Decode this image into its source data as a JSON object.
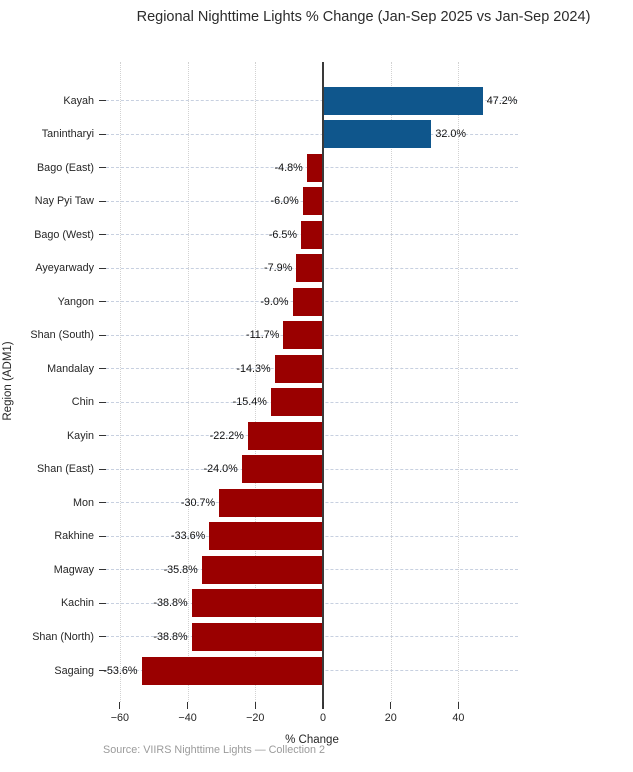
{
  "title": "Regional Nighttime Lights % Change (Jan-Sep 2025 vs Jan-Sep 2024)",
  "source_note": "Source: VIIRS Nighttime Lights — Collection 2",
  "chart_data": {
    "type": "bar",
    "orientation": "horizontal",
    "title": "Regional Nighttime Lights % Change (Jan-Sep 2025 vs Jan-Sep 2024)",
    "xlabel": "% Change",
    "ylabel": "Region (ADM1)",
    "categories": [
      "Kayah",
      "Tanintharyi",
      "Bago (East)",
      "Nay Pyi Taw",
      "Bago (West)",
      "Ayeyarwady",
      "Yangon",
      "Shan (South)",
      "Mandalay",
      "Chin",
      "Kayin",
      "Shan (East)",
      "Mon",
      "Rakhine",
      "Magway",
      "Kachin",
      "Shan (North)",
      "Sagaing"
    ],
    "values": [
      47.2,
      32.0,
      -4.8,
      -6.0,
      -6.5,
      -7.9,
      -9.0,
      -11.7,
      -14.3,
      -15.4,
      -22.2,
      -24.0,
      -30.7,
      -33.6,
      -35.8,
      -38.8,
      -38.8,
      -53.6
    ],
    "value_labels": [
      "47.2%",
      "32.0%",
      "-4.8%",
      "-6.0%",
      "-6.5%",
      "-7.9%",
      "-9.0%",
      "-11.7%",
      "-14.3%",
      "-15.4%",
      "-22.2%",
      "-24.0%",
      "-30.7%",
      "-33.6%",
      "-35.8%",
      "-38.8%",
      "-38.8%",
      "-53.6%"
    ],
    "xticks": [
      -60,
      -40,
      -20,
      0,
      20,
      40
    ],
    "xtick_labels": [
      "−60",
      "−40",
      "−20",
      "0",
      "20",
      "40"
    ],
    "xlim": [
      -64.1,
      57.6
    ],
    "grid": true,
    "legend_position": "none",
    "colors": {
      "positive_bar": "#0F568C",
      "negative_bar": "#9A0000",
      "zero_line": "#3a3a3a",
      "hgrid": "#c7d0e0",
      "vgrid": "#d2d2d2"
    }
  }
}
